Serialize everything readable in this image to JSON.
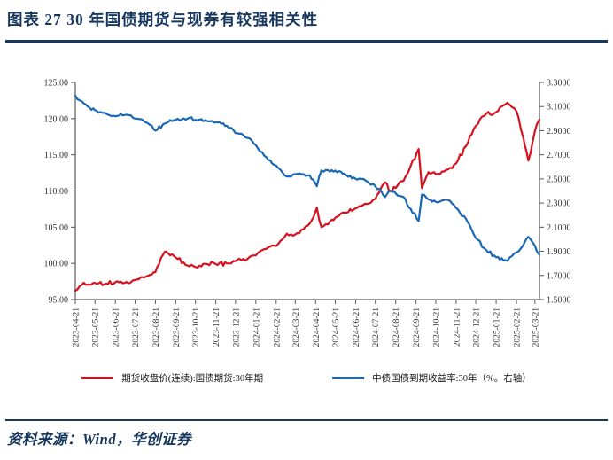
{
  "header": {
    "title": "图表 27  30 年国债期货与现券有较强相关性"
  },
  "footer": {
    "source": "资料来源：Wind，华创证券"
  },
  "colors": {
    "accent_navy": "#17375E",
    "futures_red": "#D9101F",
    "yield_blue": "#1A68B5",
    "axis_gray": "#595959",
    "tick_text": "#333333"
  },
  "chart_data": {
    "type": "line",
    "title": "",
    "grid": false,
    "legend_position": "bottom",
    "left_axis": {
      "min": 95,
      "max": 125,
      "tick_labels": [
        "125.00",
        "120.00",
        "115.00",
        "110.00",
        "105.00",
        "100.00",
        "95.00"
      ]
    },
    "right_axis": {
      "min": 1.5,
      "max": 3.3,
      "tick_labels": [
        "3.3000",
        "3.1000",
        "2.9000",
        "2.7000",
        "2.5000",
        "2.3000",
        "2.1000",
        "1.9000",
        "1.7000",
        "1.5000"
      ]
    },
    "x_range": [
      "2023-04-21",
      "2025-03-28"
    ],
    "x_tick_labels": [
      "2023-04-21",
      "2023-05-21",
      "2023-06-21",
      "2023-07-21",
      "2023-08-21",
      "2023-09-21",
      "2023-10-21",
      "2023-11-21",
      "2023-12-21",
      "2024-01-21",
      "2024-02-21",
      "2024-03-21",
      "2024-04-21",
      "2024-05-21",
      "2024-06-21",
      "2024-07-21",
      "2024-08-21",
      "2024-09-21",
      "2024-10-21",
      "2024-11-21",
      "2024-12-21",
      "2025-01-21",
      "2025-02-21",
      "2025-03-21"
    ],
    "series": [
      {
        "name": "期货收盘价(连续):国债期货:30年期",
        "axis": "left",
        "color": "#D9101F",
        "points": [
          [
            "2023-04-21",
            96.2
          ],
          [
            "2023-04-28",
            96.9
          ],
          [
            "2023-05-10",
            97.1
          ],
          [
            "2023-05-21",
            97.3
          ],
          [
            "2023-06-07",
            97.2
          ],
          [
            "2023-06-21",
            97.4
          ],
          [
            "2023-07-05",
            97.3
          ],
          [
            "2023-07-21",
            97.7
          ],
          [
            "2023-08-10",
            98.3
          ],
          [
            "2023-08-21",
            98.8
          ],
          [
            "2023-09-04",
            101.6
          ],
          [
            "2023-09-21",
            100.8
          ],
          [
            "2023-10-09",
            99.7
          ],
          [
            "2023-10-21",
            99.5
          ],
          [
            "2023-11-08",
            99.9
          ],
          [
            "2023-11-21",
            99.9
          ],
          [
            "2023-12-08",
            100.0
          ],
          [
            "2023-12-21",
            100.3
          ],
          [
            "2024-01-08",
            100.6
          ],
          [
            "2024-01-21",
            101.1
          ],
          [
            "2024-02-06",
            102.0
          ],
          [
            "2024-02-21",
            102.4
          ],
          [
            "2024-03-08",
            104.1
          ],
          [
            "2024-03-21",
            104.0
          ],
          [
            "2024-04-12",
            105.5
          ],
          [
            "2024-04-23",
            107.7
          ],
          [
            "2024-04-30",
            105.0
          ],
          [
            "2024-05-13",
            105.8
          ],
          [
            "2024-05-21",
            106.3
          ],
          [
            "2024-06-07",
            107.0
          ],
          [
            "2024-06-21",
            107.6
          ],
          [
            "2024-07-08",
            108.2
          ],
          [
            "2024-07-21",
            108.9
          ],
          [
            "2024-08-05",
            111.2
          ],
          [
            "2024-08-13",
            110.0
          ],
          [
            "2024-08-21",
            110.4
          ],
          [
            "2024-09-02",
            111.4
          ],
          [
            "2024-09-13",
            113.5
          ],
          [
            "2024-09-25",
            115.8
          ],
          [
            "2024-09-30",
            110.4
          ],
          [
            "2024-10-10",
            112.6
          ],
          [
            "2024-10-21",
            112.3
          ],
          [
            "2024-11-06",
            112.9
          ],
          [
            "2024-11-21",
            113.8
          ],
          [
            "2024-12-06",
            116.2
          ],
          [
            "2024-12-21",
            119.0
          ],
          [
            "2025-01-06",
            120.7
          ],
          [
            "2025-01-21",
            120.9
          ],
          [
            "2025-02-07",
            122.2
          ],
          [
            "2025-02-14",
            121.6
          ],
          [
            "2025-02-21",
            121.0
          ],
          [
            "2025-03-03",
            117.5
          ],
          [
            "2025-03-11",
            114.2
          ],
          [
            "2025-03-18",
            117.0
          ],
          [
            "2025-03-24",
            119.2
          ],
          [
            "2025-03-28",
            119.9
          ]
        ]
      },
      {
        "name": "中债国债到期收益率:30年（%。右轴）",
        "axis": "right",
        "color": "#1A68B5",
        "points": [
          [
            "2023-04-21",
            3.19
          ],
          [
            "2023-04-28",
            3.15
          ],
          [
            "2023-05-10",
            3.1
          ],
          [
            "2023-05-21",
            3.07
          ],
          [
            "2023-06-07",
            3.04
          ],
          [
            "2023-06-21",
            3.02
          ],
          [
            "2023-07-05",
            3.03
          ],
          [
            "2023-07-21",
            3.0
          ],
          [
            "2023-08-10",
            2.96
          ],
          [
            "2023-08-21",
            2.9
          ],
          [
            "2023-09-04",
            2.96
          ],
          [
            "2023-09-21",
            2.99
          ],
          [
            "2023-10-09",
            3.0
          ],
          [
            "2023-10-21",
            2.99
          ],
          [
            "2023-11-08",
            2.98
          ],
          [
            "2023-11-21",
            2.97
          ],
          [
            "2023-12-08",
            2.94
          ],
          [
            "2023-12-21",
            2.88
          ],
          [
            "2024-01-08",
            2.84
          ],
          [
            "2024-01-21",
            2.78
          ],
          [
            "2024-02-06",
            2.68
          ],
          [
            "2024-02-21",
            2.61
          ],
          [
            "2024-03-08",
            2.52
          ],
          [
            "2024-03-21",
            2.54
          ],
          [
            "2024-04-12",
            2.53
          ],
          [
            "2024-04-23",
            2.44
          ],
          [
            "2024-04-30",
            2.57
          ],
          [
            "2024-05-13",
            2.56
          ],
          [
            "2024-05-21",
            2.57
          ],
          [
            "2024-06-07",
            2.53
          ],
          [
            "2024-06-21",
            2.5
          ],
          [
            "2024-07-08",
            2.48
          ],
          [
            "2024-07-21",
            2.44
          ],
          [
            "2024-08-05",
            2.35
          ],
          [
            "2024-08-13",
            2.4
          ],
          [
            "2024-08-21",
            2.38
          ],
          [
            "2024-09-02",
            2.35
          ],
          [
            "2024-09-13",
            2.25
          ],
          [
            "2024-09-25",
            2.15
          ],
          [
            "2024-09-30",
            2.37
          ],
          [
            "2024-10-10",
            2.33
          ],
          [
            "2024-10-21",
            2.31
          ],
          [
            "2024-11-06",
            2.33
          ],
          [
            "2024-11-21",
            2.26
          ],
          [
            "2024-12-06",
            2.17
          ],
          [
            "2024-12-21",
            2.01
          ],
          [
            "2025-01-06",
            1.91
          ],
          [
            "2025-01-21",
            1.85
          ],
          [
            "2025-02-07",
            1.82
          ],
          [
            "2025-02-14",
            1.86
          ],
          [
            "2025-02-21",
            1.89
          ],
          [
            "2025-03-03",
            1.95
          ],
          [
            "2025-03-11",
            2.02
          ],
          [
            "2025-03-18",
            1.97
          ],
          [
            "2025-03-24",
            1.9
          ],
          [
            "2025-03-28",
            1.87
          ]
        ]
      }
    ]
  }
}
